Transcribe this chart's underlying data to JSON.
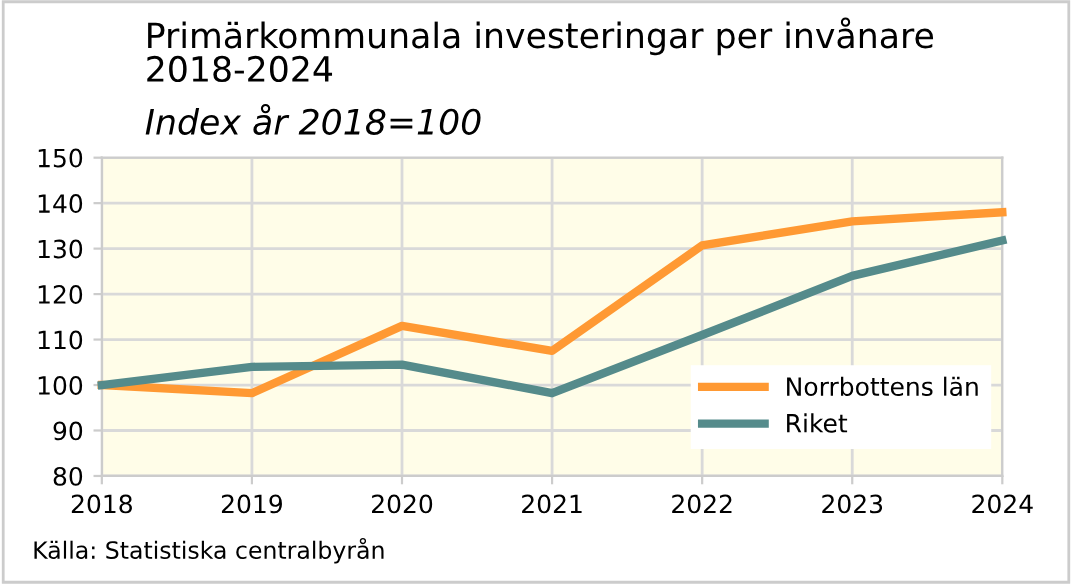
{
  "chart_data": {
    "type": "line",
    "title": "Primärkommunala investeringar per invånare\n2018-2024",
    "subtitle": "Index år 2018=100",
    "x": [
      2018,
      2019,
      2020,
      2021,
      2022,
      2023,
      2024
    ],
    "series": [
      {
        "name": "Norrbottens län",
        "color": "#ff9933",
        "values": [
          100,
          98.2,
          113,
          107.5,
          130.7,
          136,
          138
        ]
      },
      {
        "name": "Riket",
        "color": "#558b8b",
        "values": [
          100,
          104,
          104.5,
          98.2,
          111,
          124,
          131.8
        ]
      }
    ],
    "xlim": [
      2018,
      2024
    ],
    "xticks": [
      2018,
      2019,
      2020,
      2021,
      2022,
      2023,
      2024
    ],
    "ylim": [
      80,
      150
    ],
    "yticks": [
      80,
      90,
      100,
      110,
      120,
      130,
      140,
      150
    ],
    "grid": true,
    "legend": "bottom right",
    "marker": "none",
    "line_style": "solid",
    "annotations": [
      "Källa: Statistiska centralbyrån"
    ]
  }
}
